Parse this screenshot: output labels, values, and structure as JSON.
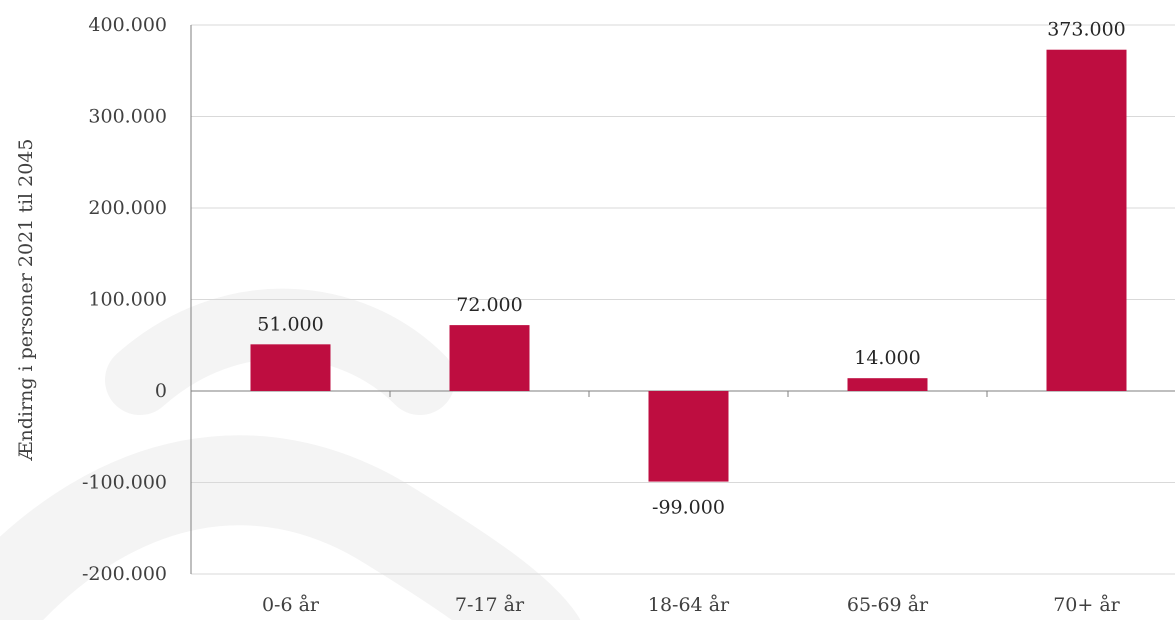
{
  "chart_data": {
    "type": "bar",
    "title": "",
    "xlabel": "",
    "ylabel": "Ændirng i personer 2021 til 2045",
    "categories": [
      "0-6 år",
      "7-17 år",
      "18-64 år",
      "65-69 år",
      "70+ år"
    ],
    "values": [
      51000,
      72000,
      -99000,
      14000,
      373000
    ],
    "data_labels": [
      "51.000",
      "72.000",
      "-99.000",
      "14.000",
      "373.000"
    ],
    "ylim": [
      -200000,
      400000
    ],
    "yticks": [
      -200000,
      -100000,
      0,
      100000,
      200000,
      300000,
      400000
    ],
    "ytick_labels": [
      "-200.000",
      "-100.000",
      "0",
      "100.000",
      "200.000",
      "300.000",
      "400.000"
    ],
    "grid": true,
    "legend": "none",
    "bar_color": "#BE0D40",
    "grid_color": "#D9D9D9",
    "watermark_color": "#F4F4F4"
  }
}
